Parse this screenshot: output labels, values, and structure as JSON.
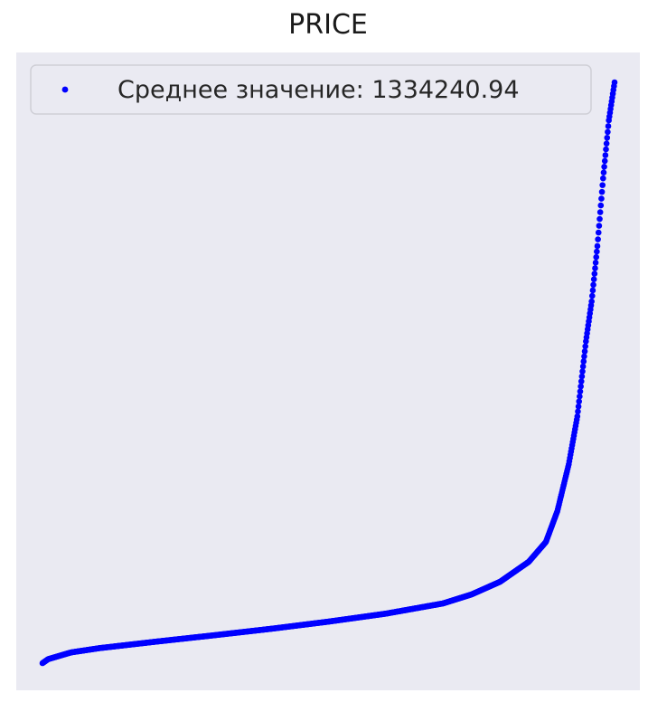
{
  "chart_data": {
    "type": "scatter",
    "title": "PRICE",
    "xlabel": "",
    "ylabel": "",
    "grid": false,
    "legend": {
      "placement": "top-left",
      "entries": [
        "Среднее значение: 1334240.94"
      ]
    },
    "series": [
      {
        "name": "Среднее значение: 1334240.94",
        "color": "#0000ff",
        "marker": "point",
        "count": 1000,
        "curve_knots": [
          [
            0.0,
            0.0
          ],
          [
            0.01,
            0.0069
          ],
          [
            0.05,
            0.0185
          ],
          [
            0.1,
            0.0259
          ],
          [
            0.2,
            0.0372
          ],
          [
            0.3,
            0.048
          ],
          [
            0.4,
            0.0592
          ],
          [
            0.5,
            0.0715
          ],
          [
            0.6,
            0.0852
          ],
          [
            0.7,
            0.1028
          ],
          [
            0.75,
            0.1183
          ],
          [
            0.8,
            0.1402
          ],
          [
            0.85,
            0.1745
          ],
          [
            0.88,
            0.2087
          ],
          [
            0.9,
            0.2617
          ],
          [
            0.92,
            0.3427
          ],
          [
            0.935,
            0.4252
          ],
          [
            0.95,
            0.5545
          ],
          [
            0.96,
            0.6231
          ],
          [
            0.97,
            0.7184
          ],
          [
            0.98,
            0.8349
          ],
          [
            0.99,
            0.9346
          ],
          [
            1.0,
            1.0
          ]
        ]
      }
    ]
  }
}
